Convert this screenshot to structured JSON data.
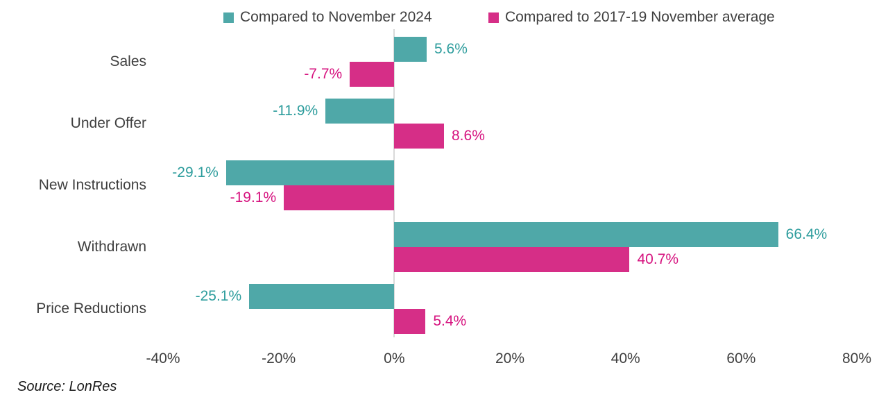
{
  "chart_data": {
    "type": "bar",
    "orientation": "horizontal",
    "title": "",
    "categories": [
      "Sales",
      "Under Offer",
      "New Instructions",
      "Withdrawn",
      "Price Reductions"
    ],
    "series": [
      {
        "name": "Compared to November 2024",
        "color": "#4FA8A8",
        "label_color": "#2E9D9D",
        "values": [
          5.6,
          -11.9,
          -29.1,
          66.4,
          -25.1
        ],
        "labels": [
          "5.6%",
          "-11.9%",
          "-29.1%",
          "66.4%",
          "-25.1%"
        ]
      },
      {
        "name": "Compared to 2017-19 November average",
        "color": "#D62E87",
        "label_color": "#D6137F",
        "values": [
          -7.7,
          8.6,
          -19.1,
          40.7,
          5.4
        ],
        "labels": [
          "-7.7%",
          "8.6%",
          "-19.1%",
          "40.7%",
          "5.4%"
        ]
      }
    ],
    "xlim": [
      -40,
      80
    ],
    "xtick_values": [
      -40,
      -20,
      0,
      20,
      40,
      60,
      80
    ],
    "xtick_labels": [
      "-40%",
      "-20%",
      "0%",
      "20%",
      "40%",
      "60%",
      "80%"
    ],
    "grid": false,
    "legend_position": "top"
  },
  "source": {
    "text": "Source: LonRes"
  },
  "colors": {
    "background": "#FFFFFF",
    "axis_line": "#D9D9D9",
    "text": "#3F3F3F"
  }
}
